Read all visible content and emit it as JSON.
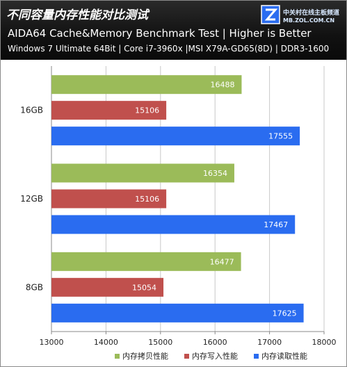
{
  "header": {
    "title": "不同容量内存性能对比测试",
    "subtitle": "AIDA64 Cache&Memory Benchmark Test  | Higher is Better",
    "specs": "Windows 7 Ultimate 64Bit | Core i7-3960x  |MSI X79A-GD65(8D)  | DDR3-1600"
  },
  "logo": {
    "name": "中关村在线主板频道",
    "url": "MB.ZOL.COM.CN"
  },
  "colors": {
    "copy": "#9bbb59",
    "write": "#c0504d",
    "read": "#2a6cf0"
  },
  "chart_data": {
    "type": "bar",
    "orientation": "horizontal",
    "categories": [
      "16GB",
      "12GB",
      "8GB"
    ],
    "series": [
      {
        "name": "内存拷贝性能",
        "values": [
          16488,
          16354,
          16477
        ]
      },
      {
        "name": "内存写入性能",
        "values": [
          15106,
          15106,
          15054
        ]
      },
      {
        "name": "内存读取性能",
        "values": [
          17555,
          17467,
          17625
        ]
      }
    ],
    "xlim": [
      13000,
      18000
    ],
    "xticks": [
      13000,
      14000,
      15000,
      16000,
      17000,
      18000
    ],
    "grid": true,
    "legend": "bottom"
  }
}
